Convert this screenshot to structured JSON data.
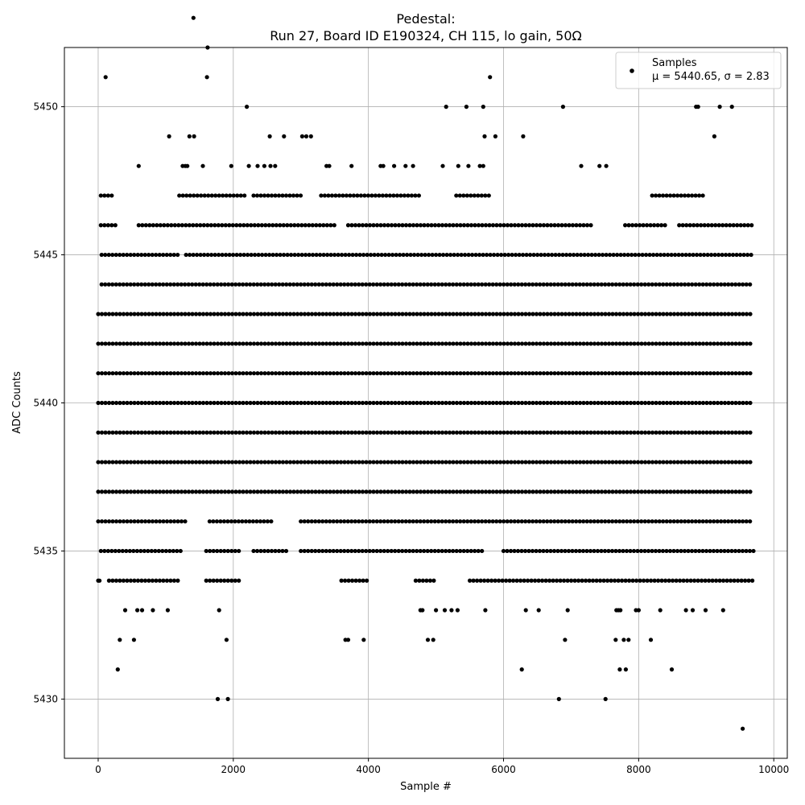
{
  "chart_data": {
    "type": "scatter",
    "title": "Pedestal:",
    "subtitle": "Run 27, Board ID E190324, CH 115, lo gain, 50Ω",
    "xlabel": "Sample #",
    "ylabel": "ADC Counts",
    "xlim": [
      -500,
      10200
    ],
    "ylim": [
      5428,
      5452
    ],
    "x_ticks": [
      0,
      2000,
      4000,
      6000,
      8000,
      10000
    ],
    "x_tick_labels": [
      "0",
      "2000",
      "4000",
      "6000",
      "8000",
      "10000"
    ],
    "y_ticks": [
      5430,
      5435,
      5440,
      5445,
      5450
    ],
    "y_tick_labels": [
      "5430",
      "5435",
      "5440",
      "5445",
      "5450"
    ],
    "grid": true,
    "legend": {
      "placement": "top-right",
      "series_label": "Samples",
      "stats_text": "μ = 5440.65, σ = 2.83"
    },
    "series": [
      {
        "name": "Samples",
        "color": "#000000",
        "n_samples": 9700,
        "mean": 5440.65,
        "std": 2.83,
        "dense_levels": [
          {
            "y": 5434,
            "x_ranges": [
              [
                0,
                40
              ],
              [
                160,
                1200
              ],
              [
                1600,
                2100
              ],
              [
                3600,
                4000
              ],
              [
                4700,
                5000
              ],
              [
                5500,
                9700
              ]
            ]
          },
          {
            "y": 5435,
            "x_ranges": [
              [
                40,
                1250
              ],
              [
                1600,
                2100
              ],
              [
                2300,
                2800
              ],
              [
                3000,
                5700
              ],
              [
                6000,
                9700
              ]
            ]
          },
          {
            "y": 5436,
            "x_ranges": [
              [
                0,
                1300
              ],
              [
                1650,
                2600
              ],
              [
                3000,
                9700
              ]
            ]
          },
          {
            "y": 5437,
            "x_ranges": [
              [
                0,
                9700
              ]
            ]
          },
          {
            "y": 5438,
            "x_ranges": [
              [
                0,
                9700
              ]
            ]
          },
          {
            "y": 5439,
            "x_ranges": [
              [
                0,
                9700
              ]
            ]
          },
          {
            "y": 5440,
            "x_ranges": [
              [
                0,
                9700
              ]
            ]
          },
          {
            "y": 5441,
            "x_ranges": [
              [
                0,
                9700
              ]
            ]
          },
          {
            "y": 5442,
            "x_ranges": [
              [
                0,
                9700
              ]
            ]
          },
          {
            "y": 5443,
            "x_ranges": [
              [
                0,
                9700
              ]
            ]
          },
          {
            "y": 5444,
            "x_ranges": [
              [
                50,
                9700
              ]
            ]
          },
          {
            "y": 5445,
            "x_ranges": [
              [
                50,
                1200
              ],
              [
                1300,
                9700
              ]
            ]
          },
          {
            "y": 5446,
            "x_ranges": [
              [
                40,
                300
              ],
              [
                600,
                3500
              ],
              [
                3700,
                7300
              ],
              [
                7800,
                8400
              ],
              [
                8600,
                9700
              ]
            ]
          },
          {
            "y": 5447,
            "x_ranges": [
              [
                40,
                250
              ],
              [
                1200,
                2200
              ],
              [
                2300,
                3000
              ],
              [
                3300,
                4800
              ],
              [
                5300,
                5800
              ],
              [
                8200,
                9000
              ]
            ]
          }
        ],
        "points": [
          [
            110,
            5451
          ],
          [
            1410,
            5453
          ],
          [
            1620,
            5452
          ],
          [
            1610,
            5451
          ],
          [
            5800,
            5451
          ],
          [
            2200,
            5450
          ],
          [
            5150,
            5450
          ],
          [
            5450,
            5450
          ],
          [
            5700,
            5450
          ],
          [
            6880,
            5450
          ],
          [
            8850,
            5450
          ],
          [
            8880,
            5450
          ],
          [
            9200,
            5450
          ],
          [
            9380,
            5450
          ],
          [
            1050,
            5449
          ],
          [
            1350,
            5449
          ],
          [
            1420,
            5449
          ],
          [
            2540,
            5449
          ],
          [
            2750,
            5449
          ],
          [
            3020,
            5449
          ],
          [
            3080,
            5449
          ],
          [
            3150,
            5449
          ],
          [
            5720,
            5449
          ],
          [
            5880,
            5449
          ],
          [
            6290,
            5449
          ],
          [
            9120,
            5449
          ],
          [
            600,
            5448
          ],
          [
            1250,
            5448
          ],
          [
            1290,
            5448
          ],
          [
            1320,
            5448
          ],
          [
            1550,
            5448
          ],
          [
            1970,
            5448
          ],
          [
            2230,
            5448
          ],
          [
            2360,
            5448
          ],
          [
            2460,
            5448
          ],
          [
            2550,
            5448
          ],
          [
            2620,
            5448
          ],
          [
            3380,
            5448
          ],
          [
            3420,
            5448
          ],
          [
            3750,
            5448
          ],
          [
            4180,
            5448
          ],
          [
            4220,
            5448
          ],
          [
            4380,
            5448
          ],
          [
            4550,
            5448
          ],
          [
            4660,
            5448
          ],
          [
            5100,
            5448
          ],
          [
            5330,
            5448
          ],
          [
            5480,
            5448
          ],
          [
            5650,
            5448
          ],
          [
            5700,
            5448
          ],
          [
            7150,
            5448
          ],
          [
            7420,
            5448
          ],
          [
            7520,
            5448
          ],
          [
            20,
            5434
          ],
          [
            400,
            5433
          ],
          [
            580,
            5433
          ],
          [
            650,
            5433
          ],
          [
            810,
            5433
          ],
          [
            1030,
            5433
          ],
          [
            1790,
            5433
          ],
          [
            4770,
            5433
          ],
          [
            4800,
            5433
          ],
          [
            5000,
            5433
          ],
          [
            5130,
            5433
          ],
          [
            5230,
            5433
          ],
          [
            5320,
            5433
          ],
          [
            5730,
            5433
          ],
          [
            6330,
            5433
          ],
          [
            6520,
            5433
          ],
          [
            6950,
            5433
          ],
          [
            7670,
            5433
          ],
          [
            7700,
            5433
          ],
          [
            7730,
            5433
          ],
          [
            7960,
            5433
          ],
          [
            8000,
            5433
          ],
          [
            8320,
            5433
          ],
          [
            8700,
            5433
          ],
          [
            8800,
            5433
          ],
          [
            8990,
            5433
          ],
          [
            9250,
            5433
          ],
          [
            320,
            5432
          ],
          [
            530,
            5432
          ],
          [
            1900,
            5432
          ],
          [
            3660,
            5432
          ],
          [
            3700,
            5432
          ],
          [
            3930,
            5432
          ],
          [
            4880,
            5432
          ],
          [
            4960,
            5432
          ],
          [
            6910,
            5432
          ],
          [
            7660,
            5432
          ],
          [
            7780,
            5432
          ],
          [
            7850,
            5432
          ],
          [
            8180,
            5432
          ],
          [
            290,
            5431
          ],
          [
            6270,
            5431
          ],
          [
            7720,
            5431
          ],
          [
            7810,
            5431
          ],
          [
            8490,
            5431
          ],
          [
            1770,
            5430
          ],
          [
            1920,
            5430
          ],
          [
            6820,
            5430
          ],
          [
            7510,
            5430
          ],
          [
            9540,
            5429
          ]
        ]
      }
    ]
  }
}
